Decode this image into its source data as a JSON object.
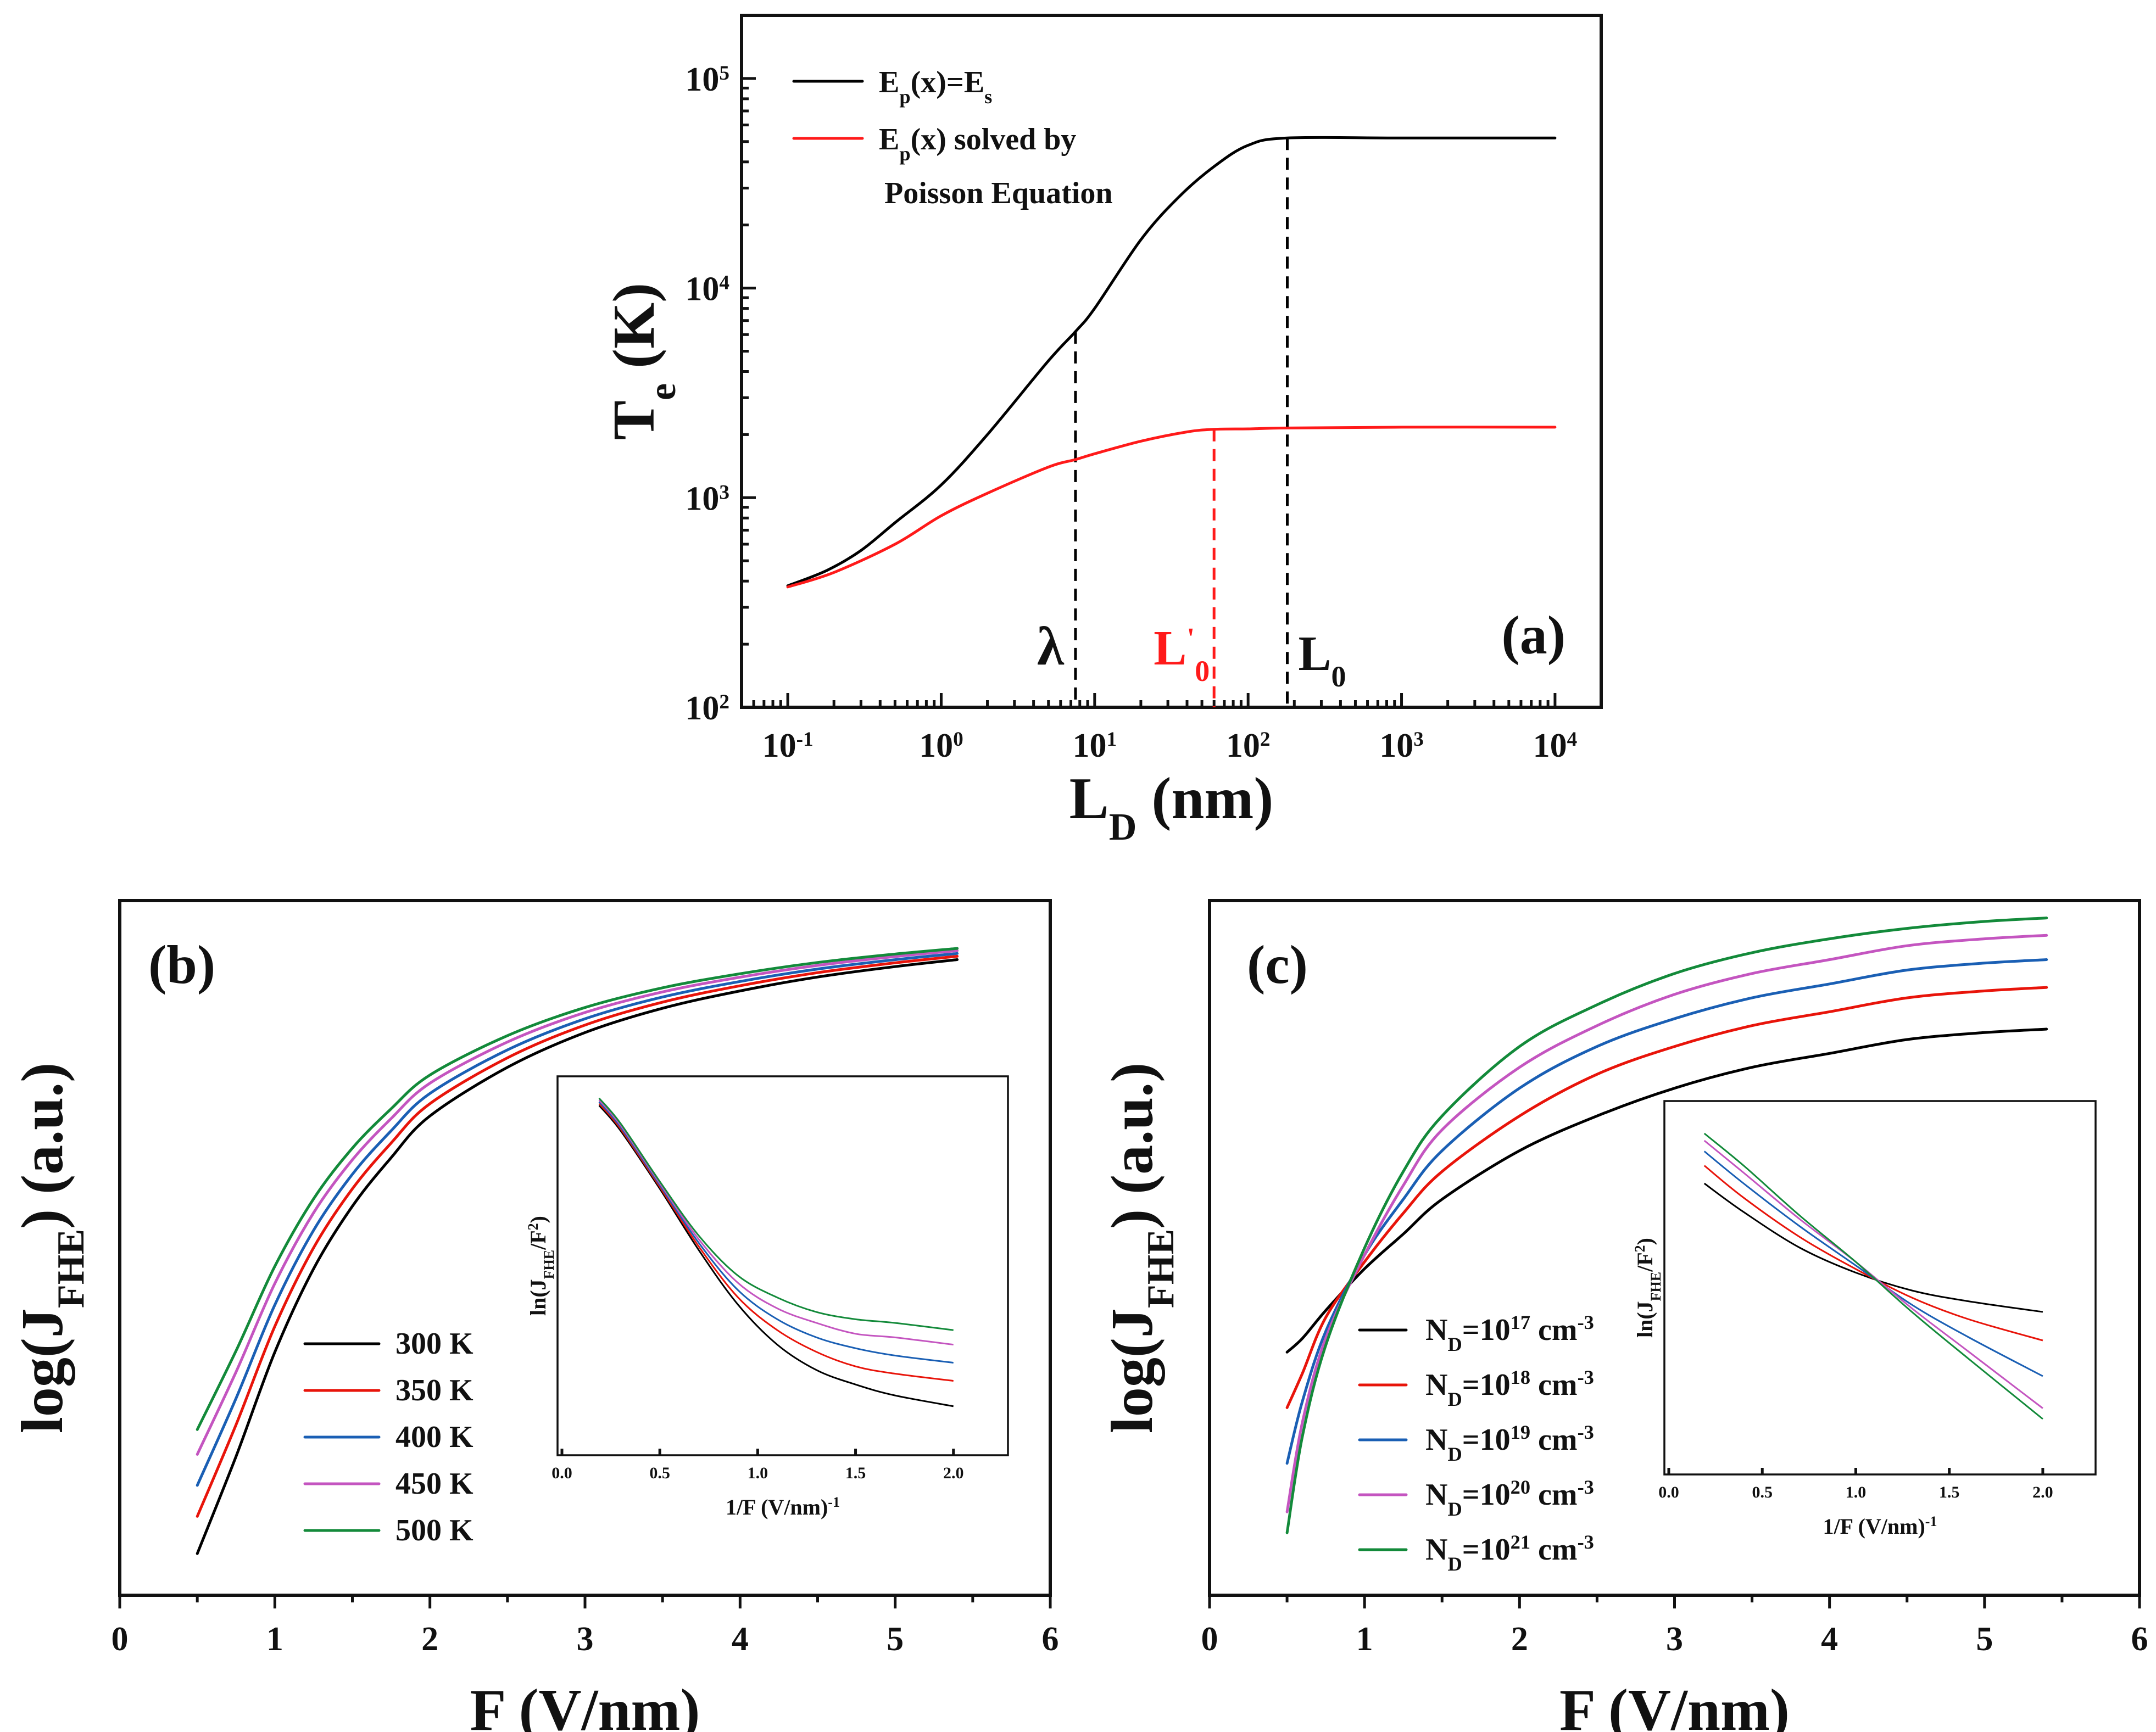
{
  "chart_data": [
    {
      "panel": "(a)",
      "type": "line",
      "xscale": "log",
      "yscale": "log",
      "xlabel": "L_D (nm)",
      "ylabel": "T_e (K)",
      "xlim": [
        0.05,
        20000
      ],
      "ylim": [
        100,
        200000
      ],
      "xticks": [
        {
          "v": 0.1,
          "base": "10",
          "exp": "-1"
        },
        {
          "v": 1,
          "base": "10",
          "exp": "0"
        },
        {
          "v": 10,
          "base": "10",
          "exp": "1"
        },
        {
          "v": 100,
          "base": "10",
          "exp": "2"
        },
        {
          "v": 1000,
          "base": "10",
          "exp": "3"
        },
        {
          "v": 10000,
          "base": "10",
          "exp": "4"
        }
      ],
      "yticks": [
        {
          "v": 100,
          "base": "10",
          "exp": "2"
        },
        {
          "v": 1000,
          "base": "10",
          "exp": "3"
        },
        {
          "v": 10000,
          "base": "10",
          "exp": "4"
        },
        {
          "v": 100000,
          "base": "10",
          "exp": "5"
        }
      ],
      "series": [
        {
          "name": "E_p(x)=E_s",
          "color": "#000000",
          "x": [
            0.1,
            0.18,
            0.3,
            0.5,
            1,
            2,
            5,
            7.5,
            10,
            20,
            35,
            60,
            100,
            180,
            1000,
            10000
          ],
          "y": [
            380,
            450,
            560,
            760,
            1150,
            2000,
            4500,
            6200,
            8000,
            17000,
            27000,
            38000,
            48000,
            52000,
            52000,
            52000
          ]
        },
        {
          "name": "E_p(x) solved by Poisson Equation",
          "color": "#ff1a1a",
          "x": [
            0.1,
            0.2,
            0.5,
            1,
            2,
            5,
            7.5,
            10,
            20,
            40,
            60,
            100,
            180,
            1000,
            10000
          ],
          "y": [
            375,
            440,
            600,
            820,
            1050,
            1400,
            1520,
            1620,
            1860,
            2060,
            2120,
            2130,
            2150,
            2170,
            2170
          ]
        }
      ],
      "legend": [
        {
          "label_main": "E",
          "label_sub": "p",
          "label_rest": "(x)=E",
          "label_sub2": "s",
          "color": "#000000"
        },
        {
          "label_main": "E",
          "label_sub": "p",
          "label_rest": "(x) solved by",
          "line2": "Poisson Equation",
          "color": "#ff1a1a"
        }
      ],
      "vlines": [
        {
          "x": 7.5,
          "label": "λ",
          "color": "#000000",
          "ytop": 6200
        },
        {
          "x": 60,
          "label": "L",
          "prime": "'",
          "sub": "0",
          "color": "#ff1a1a",
          "ytop": 2120
        },
        {
          "x": 180,
          "label": "L",
          "sub": "0",
          "color": "#000000",
          "ytop": 52000
        }
      ],
      "tag": "(a)"
    },
    {
      "panel": "(b)",
      "type": "line",
      "xlabel": "F (V/nm)",
      "ylabel": "log(J_FHE) (a.u.)",
      "xlim": [
        0,
        6
      ],
      "ylim": [
        0,
        1
      ],
      "xticks": [
        "0",
        "1",
        "2",
        "3",
        "4",
        "5",
        "6"
      ],
      "series": [
        {
          "name": "300 K",
          "color": "#000000",
          "offset": 0.0
        },
        {
          "name": "350 K",
          "color": "#e8140a",
          "offset": 0.06
        },
        {
          "name": "400 K",
          "color": "#1a5fb4",
          "offset": 0.11
        },
        {
          "name": "450 K",
          "color": "#c455c0",
          "offset": 0.16
        },
        {
          "name": "500 K",
          "color": "#138a3a",
          "offset": 0.2
        }
      ],
      "x": [
        0.5,
        0.75,
        1.0,
        1.25,
        1.5,
        1.75,
        2.0,
        2.5,
        3.0,
        3.5,
        4.0,
        4.5,
        5.0,
        5.4
      ],
      "y_base": [
        0.06,
        0.2,
        0.35,
        0.47,
        0.56,
        0.63,
        0.69,
        0.76,
        0.81,
        0.845,
        0.87,
        0.89,
        0.905,
        0.915
      ],
      "inset": {
        "xlabel": "1/F (V/nm)",
        "xlabel_exp": "-1",
        "ylabel": "ln(J_FHE/F^2)",
        "xticks": [
          "0.0",
          "0.5",
          "1.0",
          "1.5",
          "2.0"
        ],
        "x": [
          0.19,
          0.3,
          0.5,
          0.7,
          0.9,
          1.1,
          1.3,
          1.5,
          1.7,
          2.0
        ],
        "series": [
          {
            "name": "300 K",
            "color": "#000000",
            "y": [
              0.95,
              0.88,
              0.72,
              0.55,
              0.4,
              0.29,
              0.22,
              0.18,
              0.15,
              0.12
            ]
          },
          {
            "name": "350 K",
            "color": "#e8140a",
            "y": [
              0.955,
              0.885,
              0.725,
              0.56,
              0.42,
              0.33,
              0.27,
              0.23,
              0.21,
              0.19
            ]
          },
          {
            "name": "400 K",
            "color": "#1a5fb4",
            "y": [
              0.96,
              0.89,
              0.73,
              0.57,
              0.44,
              0.36,
              0.31,
              0.28,
              0.26,
              0.24
            ]
          },
          {
            "name": "450 K",
            "color": "#c455c0",
            "y": [
              0.965,
              0.895,
              0.735,
              0.58,
              0.46,
              0.39,
              0.35,
              0.32,
              0.31,
              0.29
            ]
          },
          {
            "name": "500 K",
            "color": "#138a3a",
            "y": [
              0.97,
              0.9,
              0.74,
              0.59,
              0.48,
              0.42,
              0.38,
              0.36,
              0.35,
              0.33
            ]
          }
        ]
      },
      "tag": "(b)"
    },
    {
      "panel": "(c)",
      "type": "line",
      "xlabel": "F (V/nm)",
      "ylabel": "log(J_FHE) (a.u.)",
      "xlim": [
        0,
        6
      ],
      "ylim": [
        0,
        1
      ],
      "xticks": [
        "0",
        "1",
        "2",
        "3",
        "4",
        "5",
        "6"
      ],
      "x": [
        0.5,
        0.6,
        0.75,
        1.0,
        1.25,
        1.5,
        2.0,
        2.5,
        3.0,
        3.5,
        4.0,
        4.5,
        5.0,
        5.4
      ],
      "series": [
        {
          "name": "N_D=10^17 cm^-3",
          "exp": "17",
          "color": "#000000",
          "y": [
            0.35,
            0.37,
            0.41,
            0.47,
            0.52,
            0.57,
            0.64,
            0.69,
            0.73,
            0.76,
            0.78,
            0.8,
            0.81,
            0.815
          ]
        },
        {
          "name": "N_D=10^18 cm^-3",
          "exp": "18",
          "color": "#e8140a",
          "y": [
            0.27,
            0.32,
            0.4,
            0.48,
            0.55,
            0.61,
            0.69,
            0.75,
            0.79,
            0.82,
            0.84,
            0.86,
            0.87,
            0.875
          ]
        },
        {
          "name": "N_D=10^19 cm^-3",
          "exp": "19",
          "color": "#1a5fb4",
          "y": [
            0.19,
            0.28,
            0.38,
            0.49,
            0.57,
            0.64,
            0.73,
            0.79,
            0.83,
            0.86,
            0.88,
            0.9,
            0.91,
            0.915
          ]
        },
        {
          "name": "N_D=10^20 cm^-3",
          "exp": "20",
          "color": "#c455c0",
          "y": [
            0.12,
            0.25,
            0.37,
            0.49,
            0.59,
            0.67,
            0.76,
            0.82,
            0.865,
            0.895,
            0.915,
            0.935,
            0.945,
            0.95
          ]
        },
        {
          "name": "N_D=10^21 cm^-3",
          "exp": "21",
          "color": "#138a3a",
          "y": [
            0.09,
            0.23,
            0.36,
            0.5,
            0.61,
            0.69,
            0.79,
            0.85,
            0.895,
            0.925,
            0.945,
            0.96,
            0.97,
            0.975
          ]
        }
      ],
      "inset": {
        "xlabel": "1/F (V/nm)",
        "xlabel_exp": "-1",
        "ylabel": "ln(J_FHE/F^2)",
        "xticks": [
          "0.0",
          "0.5",
          "1.0",
          "1.5",
          "2.0"
        ],
        "x": [
          0.19,
          0.4,
          0.7,
          1.0,
          1.3,
          1.6,
          2.0
        ],
        "series": [
          {
            "name": "17",
            "color": "#000000",
            "y": [
              0.8,
              0.72,
              0.62,
              0.55,
              0.5,
              0.47,
              0.44
            ]
          },
          {
            "name": "18",
            "color": "#e8140a",
            "y": [
              0.85,
              0.76,
              0.65,
              0.56,
              0.48,
              0.42,
              0.36
            ]
          },
          {
            "name": "19",
            "color": "#1a5fb4",
            "y": [
              0.89,
              0.8,
              0.68,
              0.57,
              0.46,
              0.37,
              0.26
            ]
          },
          {
            "name": "20",
            "color": "#c455c0",
            "y": [
              0.92,
              0.83,
              0.7,
              0.58,
              0.45,
              0.33,
              0.17
            ]
          },
          {
            "name": "21",
            "color": "#138a3a",
            "y": [
              0.94,
              0.85,
              0.71,
              0.58,
              0.44,
              0.31,
              0.14
            ]
          }
        ]
      },
      "tag": "(c)"
    }
  ]
}
